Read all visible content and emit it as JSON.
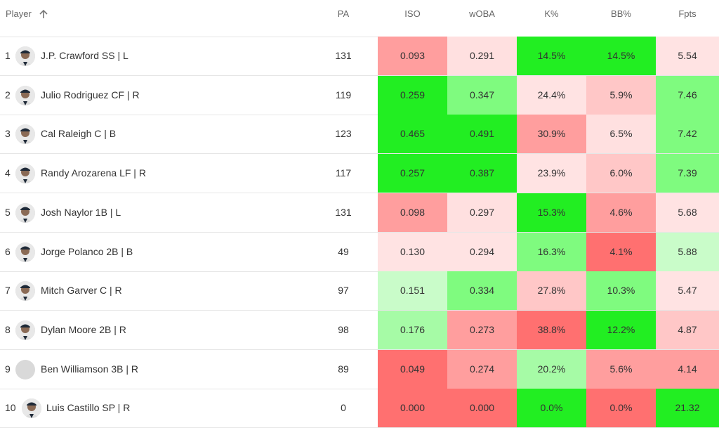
{
  "header": {
    "player": "Player",
    "pa": "PA",
    "iso": "ISO",
    "woba": "wOBA",
    "k": "K%",
    "bb": "BB%",
    "fpts": "Fpts"
  },
  "rows": [
    {
      "rank": "1",
      "name": "J.P. Crawford SS | L",
      "pa": "131",
      "iso": "0.093",
      "woba": "0.291",
      "k": "14.5%",
      "bb": "14.5%",
      "fpts": "5.54",
      "colors": {
        "iso": "#ff9e9e",
        "woba": "#ffe0e0",
        "k": "#22ee22",
        "bb": "#22ee22",
        "fpts": "#ffe3e3"
      }
    },
    {
      "rank": "2",
      "name": "Julio Rodriguez CF | R",
      "pa": "119",
      "iso": "0.259",
      "woba": "0.347",
      "k": "24.4%",
      "bb": "5.9%",
      "fpts": "7.46",
      "colors": {
        "iso": "#22ee22",
        "woba": "#7ffb7f",
        "k": "#ffe3e3",
        "bb": "#ffc7c7",
        "fpts": "#7ffb7f"
      }
    },
    {
      "rank": "3",
      "name": "Cal Raleigh C | B",
      "pa": "123",
      "iso": "0.465",
      "woba": "0.491",
      "k": "30.9%",
      "bb": "6.5%",
      "fpts": "7.42",
      "colors": {
        "iso": "#22ee22",
        "woba": "#22ee22",
        "k": "#ff9e9e",
        "bb": "#ffe0e0",
        "fpts": "#7ffb7f"
      }
    },
    {
      "rank": "4",
      "name": "Randy Arozarena LF | R",
      "pa": "117",
      "iso": "0.257",
      "woba": "0.387",
      "k": "23.9%",
      "bb": "6.0%",
      "fpts": "7.39",
      "colors": {
        "iso": "#22ee22",
        "woba": "#22ee22",
        "k": "#ffe3e3",
        "bb": "#ffc7c7",
        "fpts": "#7ffb7f"
      }
    },
    {
      "rank": "5",
      "name": "Josh Naylor 1B | L",
      "pa": "131",
      "iso": "0.098",
      "woba": "0.297",
      "k": "15.3%",
      "bb": "4.6%",
      "fpts": "5.68",
      "colors": {
        "iso": "#ff9e9e",
        "woba": "#ffe0e0",
        "k": "#22ee22",
        "bb": "#ff9e9e",
        "fpts": "#ffe3e3"
      }
    },
    {
      "rank": "6",
      "name": "Jorge Polanco 2B | B",
      "pa": "49",
      "iso": "0.130",
      "woba": "0.294",
      "k": "16.3%",
      "bb": "4.1%",
      "fpts": "5.88",
      "colors": {
        "iso": "#ffe3e3",
        "woba": "#ffe3e3",
        "k": "#7ffb7f",
        "bb": "#ff7070",
        "fpts": "#c9fcc9"
      }
    },
    {
      "rank": "7",
      "name": "Mitch Garver C | R",
      "pa": "97",
      "iso": "0.151",
      "woba": "0.334",
      "k": "27.8%",
      "bb": "10.3%",
      "fpts": "5.47",
      "colors": {
        "iso": "#c9fcc9",
        "woba": "#7ffb7f",
        "k": "#ffc7c7",
        "bb": "#7ffb7f",
        "fpts": "#ffe3e3"
      }
    },
    {
      "rank": "8",
      "name": "Dylan Moore 2B | R",
      "pa": "98",
      "iso": "0.176",
      "woba": "0.273",
      "k": "38.8%",
      "bb": "12.2%",
      "fpts": "4.87",
      "colors": {
        "iso": "#a6fba6",
        "woba": "#ff9e9e",
        "k": "#ff7070",
        "bb": "#22ee22",
        "fpts": "#ffc7c7"
      }
    },
    {
      "rank": "9",
      "name": "Ben Williamson 3B | R",
      "pa": "89",
      "iso": "0.049",
      "woba": "0.274",
      "k": "20.2%",
      "bb": "5.6%",
      "fpts": "4.14",
      "colors": {
        "iso": "#ff7070",
        "woba": "#ff9e9e",
        "k": "#a6fba6",
        "bb": "#ff9e9e",
        "fpts": "#ff9e9e"
      }
    },
    {
      "rank": "10",
      "name": "Luis Castillo SP | R",
      "pa": "0",
      "iso": "0.000",
      "woba": "0.000",
      "k": "0.0%",
      "bb": "0.0%",
      "fpts": "21.32",
      "colors": {
        "iso": "#ff7070",
        "woba": "#ff7070",
        "k": "#22ee22",
        "bb": "#ff7070",
        "fpts": "#22ee22"
      }
    }
  ]
}
